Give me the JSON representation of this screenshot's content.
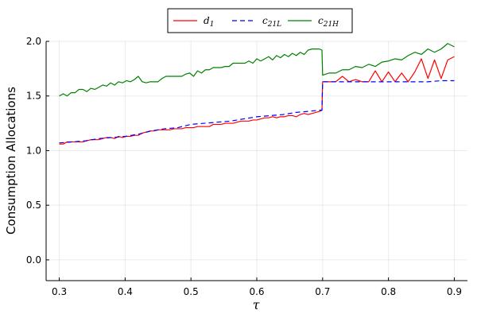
{
  "chart_data": {
    "type": "line",
    "title": "",
    "xlabel": "τ",
    "ylabel": "Consumption Allocations",
    "xlim": [
      0.28,
      0.92
    ],
    "ylim": [
      -0.19,
      2.0
    ],
    "xticks": [
      0.3,
      0.4,
      0.5,
      0.6,
      0.7,
      0.8,
      0.9
    ],
    "xtick_labels": [
      "0.3",
      "0.4",
      "0.5",
      "0.6",
      "0.7",
      "0.8",
      "0.9"
    ],
    "yticks": [
      0.0,
      0.5,
      1.0,
      1.5,
      2.0
    ],
    "ytick_labels": [
      "0.0",
      "0.5",
      "1.0",
      "1.5",
      "2.0"
    ],
    "grid": true,
    "legend_position": "top-center",
    "series": [
      {
        "name": "d",
        "name_subscript": "1",
        "color": "#ff0000",
        "dash": "solid",
        "x": [
          0.3,
          0.306,
          0.312,
          0.318,
          0.324,
          0.33,
          0.336,
          0.342,
          0.348,
          0.354,
          0.36,
          0.366,
          0.372,
          0.378,
          0.384,
          0.39,
          0.396,
          0.402,
          0.408,
          0.414,
          0.42,
          0.426,
          0.432,
          0.438,
          0.444,
          0.45,
          0.456,
          0.462,
          0.468,
          0.474,
          0.48,
          0.486,
          0.492,
          0.498,
          0.504,
          0.51,
          0.516,
          0.522,
          0.528,
          0.534,
          0.54,
          0.546,
          0.552,
          0.558,
          0.564,
          0.57,
          0.576,
          0.582,
          0.588,
          0.594,
          0.6,
          0.606,
          0.612,
          0.618,
          0.624,
          0.63,
          0.636,
          0.642,
          0.648,
          0.654,
          0.66,
          0.666,
          0.672,
          0.678,
          0.684,
          0.69,
          0.696,
          0.699,
          0.7,
          0.71,
          0.72,
          0.73,
          0.74,
          0.75,
          0.76,
          0.77,
          0.78,
          0.79,
          0.8,
          0.81,
          0.82,
          0.83,
          0.84,
          0.85,
          0.86,
          0.87,
          0.88,
          0.89,
          0.9
        ],
        "y": [
          1.06,
          1.06,
          1.08,
          1.08,
          1.08,
          1.08,
          1.08,
          1.09,
          1.1,
          1.1,
          1.1,
          1.11,
          1.12,
          1.12,
          1.11,
          1.13,
          1.12,
          1.13,
          1.13,
          1.14,
          1.14,
          1.16,
          1.17,
          1.18,
          1.18,
          1.19,
          1.19,
          1.19,
          1.19,
          1.2,
          1.2,
          1.2,
          1.21,
          1.21,
          1.21,
          1.22,
          1.22,
          1.22,
          1.22,
          1.24,
          1.24,
          1.24,
          1.25,
          1.25,
          1.25,
          1.26,
          1.27,
          1.27,
          1.27,
          1.28,
          1.28,
          1.29,
          1.3,
          1.3,
          1.31,
          1.3,
          1.31,
          1.31,
          1.32,
          1.32,
          1.31,
          1.33,
          1.34,
          1.33,
          1.34,
          1.35,
          1.36,
          1.37,
          1.63,
          1.63,
          1.63,
          1.68,
          1.63,
          1.65,
          1.63,
          1.63,
          1.73,
          1.63,
          1.72,
          1.63,
          1.71,
          1.63,
          1.72,
          1.84,
          1.66,
          1.83,
          1.66,
          1.83,
          1.86
        ]
      },
      {
        "name": "c",
        "name_subscript": "21L",
        "color": "#0000ff",
        "dash": "dashed",
        "x": [
          0.3,
          0.32,
          0.34,
          0.36,
          0.38,
          0.4,
          0.42,
          0.44,
          0.46,
          0.48,
          0.5,
          0.52,
          0.54,
          0.56,
          0.58,
          0.6,
          0.62,
          0.64,
          0.66,
          0.68,
          0.695,
          0.699,
          0.7,
          0.72,
          0.74,
          0.76,
          0.78,
          0.8,
          0.82,
          0.84,
          0.86,
          0.88,
          0.9
        ],
        "y": [
          1.07,
          1.08,
          1.09,
          1.11,
          1.12,
          1.13,
          1.15,
          1.18,
          1.2,
          1.21,
          1.24,
          1.25,
          1.26,
          1.27,
          1.29,
          1.31,
          1.32,
          1.33,
          1.35,
          1.36,
          1.37,
          1.37,
          1.63,
          1.63,
          1.63,
          1.63,
          1.63,
          1.63,
          1.63,
          1.63,
          1.63,
          1.64,
          1.64
        ]
      },
      {
        "name": "c",
        "name_subscript": "21H",
        "color": "#008000",
        "dash": "solid",
        "x": [
          0.3,
          0.306,
          0.312,
          0.318,
          0.324,
          0.33,
          0.336,
          0.342,
          0.348,
          0.354,
          0.36,
          0.366,
          0.372,
          0.378,
          0.384,
          0.39,
          0.396,
          0.402,
          0.408,
          0.414,
          0.42,
          0.426,
          0.432,
          0.438,
          0.444,
          0.45,
          0.456,
          0.462,
          0.468,
          0.474,
          0.48,
          0.486,
          0.492,
          0.498,
          0.504,
          0.51,
          0.516,
          0.522,
          0.528,
          0.534,
          0.54,
          0.546,
          0.552,
          0.558,
          0.564,
          0.57,
          0.576,
          0.582,
          0.588,
          0.594,
          0.6,
          0.606,
          0.612,
          0.618,
          0.624,
          0.63,
          0.636,
          0.642,
          0.648,
          0.654,
          0.66,
          0.666,
          0.672,
          0.678,
          0.684,
          0.69,
          0.695,
          0.699,
          0.7,
          0.71,
          0.72,
          0.73,
          0.74,
          0.75,
          0.76,
          0.77,
          0.78,
          0.79,
          0.8,
          0.81,
          0.82,
          0.83,
          0.84,
          0.85,
          0.86,
          0.87,
          0.88,
          0.89,
          0.9
        ],
        "y": [
          1.5,
          1.52,
          1.5,
          1.53,
          1.53,
          1.56,
          1.56,
          1.54,
          1.57,
          1.56,
          1.58,
          1.6,
          1.59,
          1.62,
          1.6,
          1.63,
          1.62,
          1.64,
          1.63,
          1.65,
          1.68,
          1.63,
          1.62,
          1.63,
          1.63,
          1.63,
          1.66,
          1.68,
          1.68,
          1.68,
          1.68,
          1.68,
          1.7,
          1.71,
          1.68,
          1.73,
          1.71,
          1.74,
          1.74,
          1.76,
          1.76,
          1.76,
          1.77,
          1.77,
          1.8,
          1.8,
          1.8,
          1.8,
          1.82,
          1.8,
          1.84,
          1.82,
          1.84,
          1.86,
          1.83,
          1.87,
          1.85,
          1.88,
          1.86,
          1.89,
          1.87,
          1.9,
          1.88,
          1.92,
          1.93,
          1.93,
          1.93,
          1.92,
          1.69,
          1.71,
          1.71,
          1.74,
          1.74,
          1.77,
          1.76,
          1.79,
          1.77,
          1.81,
          1.82,
          1.84,
          1.83,
          1.87,
          1.9,
          1.88,
          1.93,
          1.9,
          1.93,
          1.98,
          1.95
        ]
      }
    ]
  }
}
